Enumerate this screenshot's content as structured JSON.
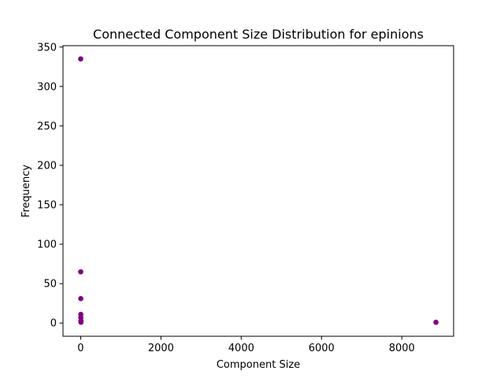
{
  "chart_data": {
    "type": "scatter",
    "title": "Connected Component Size Distribution for epinions",
    "xlabel": "Component Size",
    "ylabel": "Frequency",
    "xlim": [
      -440,
      9290
    ],
    "ylim": [
      -16.75,
      351.75
    ],
    "xticks": [
      0,
      2000,
      4000,
      6000,
      8000
    ],
    "yticks": [
      0,
      50,
      100,
      150,
      200,
      250,
      300,
      350
    ],
    "grid": false,
    "marker_color": "#800080",
    "points": [
      {
        "x": 1,
        "y": 335
      },
      {
        "x": 2,
        "y": 65
      },
      {
        "x": 3,
        "y": 31
      },
      {
        "x": 4,
        "y": 11
      },
      {
        "x": 5,
        "y": 7
      },
      {
        "x": 6,
        "y": 3
      },
      {
        "x": 7,
        "y": 2
      },
      {
        "x": 8,
        "y": 1
      },
      {
        "x": 8850,
        "y": 1
      }
    ]
  }
}
